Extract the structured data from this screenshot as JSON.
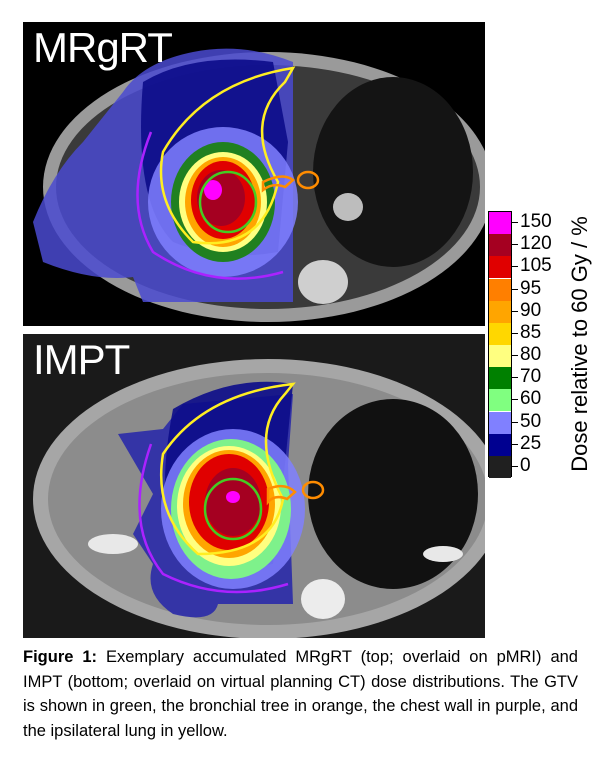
{
  "panels": {
    "top": {
      "label": "MRgRT",
      "modality": "pMRI"
    },
    "bottom": {
      "label": "IMPT",
      "modality": "virtual planning CT"
    }
  },
  "colorbar": {
    "title": "Dose relative to 60 Gy / %",
    "levels": [
      {
        "label": "150",
        "color": "#ff00ff"
      },
      {
        "label": "120",
        "color": "#a50021"
      },
      {
        "label": "105",
        "color": "#e00000"
      },
      {
        "label": "95",
        "color": "#ff7f00"
      },
      {
        "label": "90",
        "color": "#ffa500"
      },
      {
        "label": "85",
        "color": "#ffd700"
      },
      {
        "label": "80",
        "color": "#ffff80"
      },
      {
        "label": "70",
        "color": "#008000"
      },
      {
        "label": "60",
        "color": "#80ff80"
      },
      {
        "label": "50",
        "color": "#8080ff"
      },
      {
        "label": "25",
        "color": "#000090"
      },
      {
        "label": "0",
        "color": "#202020"
      }
    ]
  },
  "structures": {
    "gtv": "#44cc22",
    "bronchial_tree": "#ff8c00",
    "chest_wall": "#aa22ff",
    "ipsilateral_lung": "#ffee22"
  },
  "caption": {
    "label": "Figure 1:",
    "text": "Exemplary accumulated MRgRT (top; overlaid on pMRI) and IMPT (bottom; overlaid on virtual planning CT) dose distributions. The GTV is shown in green, the bronchial tree in orange, the chest wall in purple, and the ipsilateral lung in yellow."
  }
}
